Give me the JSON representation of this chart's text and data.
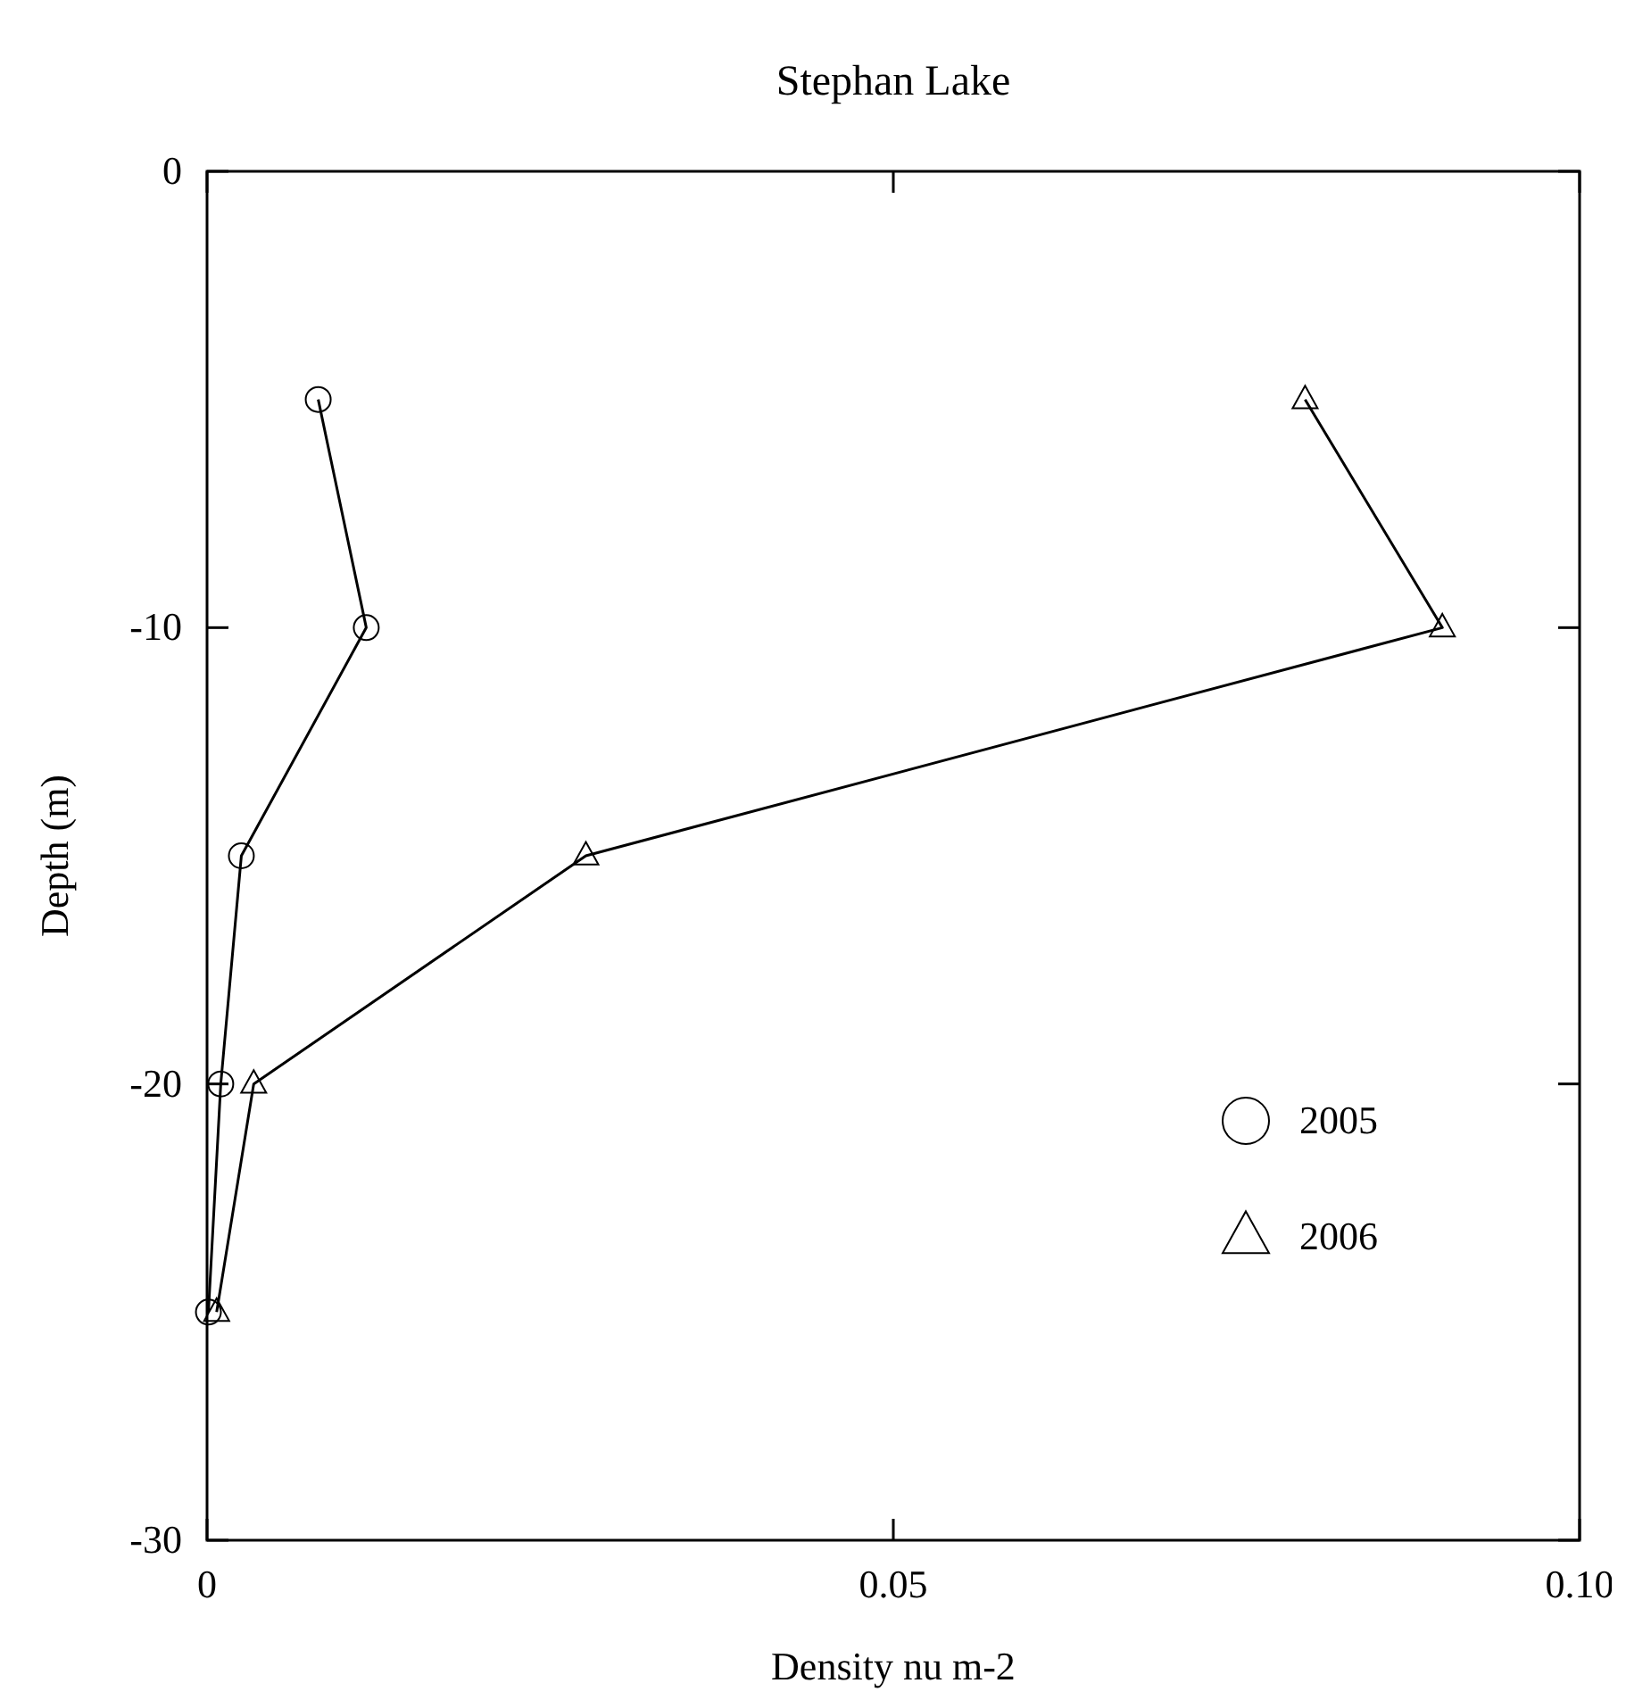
{
  "chart_data": {
    "type": "line",
    "title": "Stephan Lake",
    "xlabel": "Density nu m-2",
    "ylabel": "Depth (m)",
    "xlim": [
      0,
      0.1
    ],
    "xticks": [
      {
        "value": 0,
        "label": "0"
      },
      0.05,
      {
        "value": 0.1,
        "label": "0.10"
      }
    ],
    "ylim": [
      -30,
      0
    ],
    "yticks": [
      -30,
      -20,
      -10,
      0
    ],
    "legend": "right",
    "grid": false,
    "series": [
      {
        "name": "2005",
        "color": "#000000",
        "marker": "circle",
        "x": [
          0.0081,
          0.0116,
          0.0025,
          0.001,
          0.0001
        ],
        "values": [
          -5,
          -10,
          -15,
          -20,
          -25
        ]
      },
      {
        "name": "2006",
        "color": "#000000",
        "marker": "triangle",
        "x": [
          0.08,
          0.09,
          0.0276,
          0.0034,
          0.0007
        ],
        "values": [
          -5,
          -10,
          -15,
          -20,
          -25
        ]
      }
    ]
  }
}
